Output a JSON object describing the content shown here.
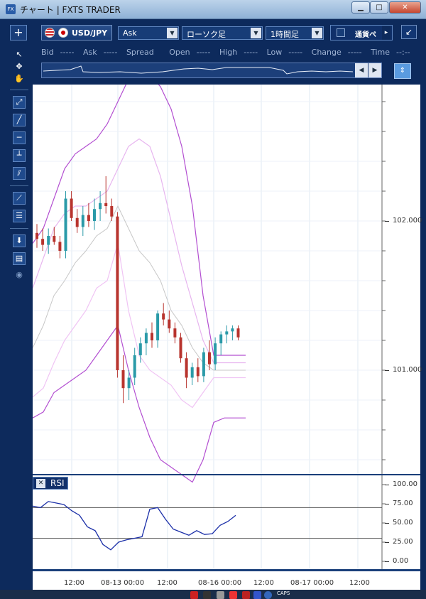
{
  "window": {
    "title": "チャート | FXTS TRADER",
    "app_icon": "FX",
    "minimize_icon": "minimize-icon",
    "maximize_icon": "maximize-icon",
    "close_icon": "close-icon"
  },
  "toolbar": {
    "add_label": "+",
    "pair": "USD/JPY",
    "price_side": "Ask",
    "chart_type": "ローソク足",
    "timeframe": "1時間足",
    "tab_label": "通貨ペ",
    "tab_arrow": "▸",
    "undock_icon": "↙"
  },
  "quotes": [
    {
      "label": "Bid",
      "value": "-----"
    },
    {
      "label": "Ask",
      "value": "-----"
    },
    {
      "label": "Spread",
      "value": ""
    },
    {
      "label": "Open",
      "value": "-----"
    },
    {
      "label": "High",
      "value": "-----"
    },
    {
      "label": "Low",
      "value": "-----"
    },
    {
      "label": "Change",
      "value": "-----"
    },
    {
      "label": "Time",
      "value": "--:--"
    }
  ],
  "tools": [
    {
      "name": "cursor-arrow-icon",
      "glyph": "↖"
    },
    {
      "name": "crosshair-cursor-icon",
      "glyph": "✥"
    },
    {
      "name": "hand-pan-icon",
      "glyph": "✋"
    },
    {
      "name": "trend-tool-icon",
      "glyph": "⤢"
    },
    {
      "name": "line-tool-icon",
      "glyph": "╱"
    },
    {
      "name": "horizontal-line-icon",
      "glyph": "─"
    },
    {
      "name": "vertical-line-icon",
      "glyph": "┴"
    },
    {
      "name": "parallel-lines-icon",
      "glyph": "⫽"
    },
    {
      "name": "fan-tool-icon",
      "glyph": "⟋"
    },
    {
      "name": "fibonacci-icon",
      "glyph": "☰"
    },
    {
      "name": "download-icon",
      "glyph": "⬇"
    },
    {
      "name": "list-icon",
      "glyph": "▤"
    },
    {
      "name": "camera-icon",
      "glyph": "◉"
    }
  ],
  "rsi": {
    "label": "RSI",
    "close_label": "✕"
  },
  "chart_data": [
    {
      "type": "candlestick",
      "title": "",
      "price_ticks": [
        "102.000",
        "101.000"
      ],
      "ylim": [
        100.4,
        103.0
      ],
      "x_ticks": [
        "12:00",
        "08-13 00:00",
        "12:00",
        "08-16 00:00",
        "12:00",
        "08-17 00:00",
        "12:00"
      ],
      "bollinger": {
        "upper2": [
          101.85,
          101.95,
          102.15,
          102.35,
          102.45,
          102.5,
          102.55,
          102.65,
          102.8,
          102.95,
          103.0,
          102.98,
          102.9,
          102.75,
          102.5,
          102.1,
          101.5,
          101.1,
          101.1,
          101.1,
          101.1
        ],
        "upper1": [
          101.55,
          101.75,
          101.95,
          102.05,
          102.1,
          102.1,
          102.15,
          102.2,
          102.35,
          102.5,
          102.55,
          102.5,
          102.3,
          102.0,
          101.7,
          101.45,
          101.2,
          101.05,
          101.05,
          101.05,
          101.05
        ],
        "mid": [
          101.15,
          101.3,
          101.5,
          101.6,
          101.72,
          101.8,
          101.9,
          101.95,
          102.1,
          101.95,
          101.8,
          101.72,
          101.6,
          101.4,
          101.3,
          101.15,
          101.05,
          101.0,
          101.0,
          101.0,
          101.0
        ],
        "lower1": [
          100.82,
          100.88,
          101.05,
          101.2,
          101.3,
          101.4,
          101.55,
          101.6,
          101.85,
          101.4,
          101.1,
          101.0,
          100.95,
          100.9,
          100.8,
          100.75,
          100.85,
          100.95,
          100.95,
          100.95,
          100.95
        ],
        "lower2": [
          100.68,
          100.72,
          100.85,
          100.9,
          100.95,
          101.0,
          101.1,
          101.2,
          101.3,
          101.0,
          100.75,
          100.55,
          100.4,
          100.35,
          100.3,
          100.25,
          100.4,
          100.65,
          100.68,
          100.68,
          100.68
        ]
      },
      "candles": [
        {
          "o": 101.92,
          "h": 101.98,
          "l": 101.82,
          "c": 101.88
        },
        {
          "o": 101.88,
          "h": 101.95,
          "l": 101.8,
          "c": 101.84
        },
        {
          "o": 101.84,
          "h": 101.95,
          "l": 101.78,
          "c": 101.9
        },
        {
          "o": 101.9,
          "h": 101.96,
          "l": 101.84,
          "c": 101.86
        },
        {
          "o": 101.86,
          "h": 101.9,
          "l": 101.75,
          "c": 101.8
        },
        {
          "o": 101.8,
          "h": 102.2,
          "l": 101.75,
          "c": 102.15
        },
        {
          "o": 102.15,
          "h": 102.2,
          "l": 102.0,
          "c": 102.02
        },
        {
          "o": 102.02,
          "h": 102.08,
          "l": 101.92,
          "c": 101.96
        },
        {
          "o": 101.96,
          "h": 102.1,
          "l": 101.9,
          "c": 102.04
        },
        {
          "o": 102.04,
          "h": 102.12,
          "l": 101.96,
          "c": 102.0
        },
        {
          "o": 102.0,
          "h": 102.15,
          "l": 101.94,
          "c": 102.08
        },
        {
          "o": 102.08,
          "h": 102.2,
          "l": 102.0,
          "c": 102.12
        },
        {
          "o": 102.12,
          "h": 102.3,
          "l": 102.05,
          "c": 102.1
        },
        {
          "o": 102.1,
          "h": 102.15,
          "l": 102.0,
          "c": 102.03
        },
        {
          "o": 102.03,
          "h": 102.06,
          "l": 100.95,
          "c": 101.0
        },
        {
          "o": 101.0,
          "h": 101.1,
          "l": 100.78,
          "c": 100.88
        },
        {
          "o": 100.88,
          "h": 101.0,
          "l": 100.8,
          "c": 100.95
        },
        {
          "o": 100.95,
          "h": 101.15,
          "l": 100.9,
          "c": 101.1
        },
        {
          "o": 101.1,
          "h": 101.22,
          "l": 101.05,
          "c": 101.18
        },
        {
          "o": 101.18,
          "h": 101.28,
          "l": 101.1,
          "c": 101.25
        },
        {
          "o": 101.25,
          "h": 101.32,
          "l": 101.15,
          "c": 101.2
        },
        {
          "o": 101.2,
          "h": 101.4,
          "l": 101.15,
          "c": 101.38
        },
        {
          "o": 101.38,
          "h": 101.45,
          "l": 101.3,
          "c": 101.34
        },
        {
          "o": 101.34,
          "h": 101.4,
          "l": 101.25,
          "c": 101.28
        },
        {
          "o": 101.28,
          "h": 101.32,
          "l": 101.18,
          "c": 101.22
        },
        {
          "o": 101.22,
          "h": 101.25,
          "l": 101.05,
          "c": 101.08
        },
        {
          "o": 101.08,
          "h": 101.12,
          "l": 100.88,
          "c": 100.95
        },
        {
          "o": 100.95,
          "h": 101.05,
          "l": 100.9,
          "c": 101.02
        },
        {
          "o": 101.02,
          "h": 101.08,
          "l": 100.92,
          "c": 100.96
        },
        {
          "o": 100.96,
          "h": 101.15,
          "l": 100.92,
          "c": 101.12
        },
        {
          "o": 101.12,
          "h": 101.2,
          "l": 101.0,
          "c": 101.04
        },
        {
          "o": 101.04,
          "h": 101.22,
          "l": 101.0,
          "c": 101.18
        },
        {
          "o": 101.18,
          "h": 101.26,
          "l": 101.1,
          "c": 101.24
        },
        {
          "o": 101.24,
          "h": 101.3,
          "l": 101.18,
          "c": 101.26
        },
        {
          "o": 101.26,
          "h": 101.3,
          "l": 101.2,
          "c": 101.28
        },
        {
          "o": 101.28,
          "h": 101.3,
          "l": 101.2,
          "c": 101.22
        }
      ]
    },
    {
      "type": "line",
      "title": "RSI",
      "ylim": [
        0,
        100
      ],
      "ticks": [
        "100.00",
        "75.00",
        "50.00",
        "25.00",
        "0.00"
      ],
      "levels": [
        70,
        30
      ],
      "values": [
        72,
        70,
        78,
        76,
        74,
        66,
        60,
        45,
        40,
        22,
        15,
        25,
        28,
        30,
        32,
        68,
        70,
        55,
        42,
        38,
        34,
        40,
        35,
        36,
        47,
        52,
        60
      ]
    }
  ]
}
